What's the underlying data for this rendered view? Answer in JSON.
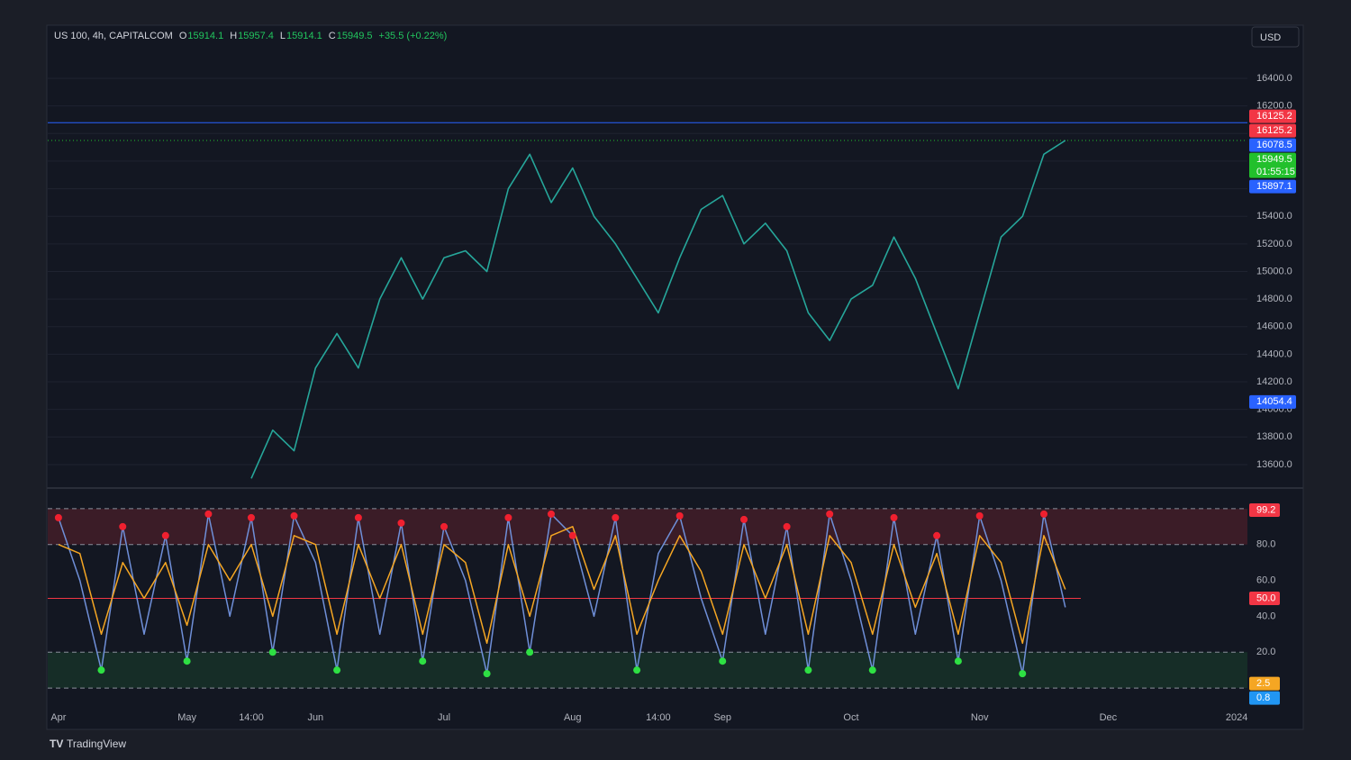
{
  "header": {
    "symbol": "US 100, 4h, CAPITALCOM",
    "ohlc": [
      {
        "key": "O",
        "value": 15914.1
      },
      {
        "key": "H",
        "value": 15957.4
      },
      {
        "key": "L",
        "value": 15914.1
      },
      {
        "key": "C",
        "value": 15949.5
      }
    ],
    "change": "+35.5 (+0.22%)"
  },
  "currency": "USD",
  "brand": "TradingView",
  "chart_data": [
    {
      "type": "line",
      "categories": [
        "Apr",
        null,
        null,
        null,
        null,
        null,
        "May",
        null,
        null,
        "14:00",
        null,
        null,
        "Jun",
        null,
        null,
        null,
        null,
        null,
        "Jul",
        null,
        null,
        null,
        null,
        null,
        "Aug",
        null,
        null,
        null,
        "14:00",
        null,
        null,
        "Sep",
        null,
        null,
        null,
        null,
        null,
        "Oct",
        null,
        null,
        null,
        null,
        null,
        "Nov",
        null,
        null,
        null,
        null,
        null,
        "Dec",
        null,
        null,
        null,
        null,
        null,
        "2024"
      ],
      "series": [
        {
          "color": "#26a69a",
          "values": [
            null,
            null,
            null,
            null,
            null,
            null,
            null,
            null,
            null,
            13500,
            13850,
            13700,
            14300,
            14550,
            14300,
            14800,
            15100,
            14800,
            15100,
            15150,
            15000,
            15600,
            15850,
            15500,
            15750,
            15400,
            15200,
            14950,
            14700,
            15100,
            15450,
            15550,
            15200,
            15350,
            15150,
            14700,
            14500,
            14800,
            14900,
            15250,
            14950,
            14550,
            14150,
            14700,
            15250,
            15400,
            15850,
            15950,
            null,
            null,
            null,
            null,
            null,
            null,
            null,
            null
          ]
        }
      ],
      "ylim": [
        13443,
        16609
      ],
      "yticks": [
        {
          "value": 13600,
          "label": "13600.0"
        },
        {
          "value": 13800,
          "label": "13800.0"
        },
        {
          "value": 14000,
          "label": "14000.0"
        },
        {
          "value": 14200,
          "label": "14200.0"
        },
        {
          "value": 14400,
          "label": "14400.0"
        },
        {
          "value": 14600,
          "label": "14600.0"
        },
        {
          "value": 14800,
          "label": "14800.0"
        },
        {
          "value": 15000,
          "label": "15000.0"
        },
        {
          "value": 15200,
          "label": "15200.0"
        },
        {
          "value": 15400,
          "label": "15400.0"
        },
        {
          "value": 15600,
          "label": "15600.0"
        },
        {
          "value": 15800,
          "label": "15800.0"
        },
        {
          "value": 16000,
          "label": "16000.0"
        },
        {
          "value": 16200,
          "label": "16200.0"
        },
        {
          "value": 16400,
          "label": "16400.0"
        }
      ],
      "grid": true,
      "markers": [
        {
          "value": 16125.2,
          "color": "#f23645"
        },
        {
          "value": 16125.2,
          "color": "#f23645"
        },
        {
          "value": 16078.5,
          "color": "#2962ff",
          "line": "solid"
        },
        {
          "value": 15949.5,
          "color": "#22c02c",
          "line": "dotted",
          "countdown": "01:55:15"
        },
        {
          "value": 15897.1,
          "color": "#2962ff"
        },
        {
          "value": 14054.4,
          "color": "#2962ff"
        }
      ]
    },
    {
      "type": "line",
      "series": [
        {
          "color": "#6f8fd8",
          "values": [
            95,
            60,
            10,
            90,
            30,
            85,
            15,
            97,
            40,
            95,
            20,
            96,
            70,
            10,
            95,
            30,
            92,
            15,
            90,
            60,
            8,
            95,
            20,
            97,
            85,
            40,
            95,
            10,
            75,
            96,
            50,
            15,
            94,
            30,
            90,
            10,
            97,
            60,
            10,
            95,
            30,
            85,
            15,
            96,
            60,
            8,
            97,
            45,
            null,
            null,
            null,
            null,
            null,
            null,
            null,
            null
          ]
        },
        {
          "color": "#f5a623",
          "values": [
            80,
            75,
            30,
            70,
            50,
            70,
            35,
            80,
            60,
            80,
            40,
            85,
            80,
            30,
            80,
            50,
            80,
            30,
            80,
            70,
            25,
            80,
            40,
            85,
            90,
            55,
            85,
            30,
            60,
            85,
            65,
            30,
            80,
            50,
            80,
            30,
            85,
            70,
            30,
            80,
            45,
            75,
            30,
            85,
            70,
            25,
            85,
            55,
            null,
            null,
            null,
            null,
            null,
            null,
            null,
            null
          ]
        }
      ],
      "ylim": [
        -8,
        110
      ],
      "yticks": [
        {
          "value": 20,
          "label": "20.0"
        },
        {
          "value": 40,
          "label": "40.0"
        },
        {
          "value": 60,
          "label": "60.0"
        },
        {
          "value": 80,
          "label": "80.0"
        }
      ],
      "bands": [
        {
          "from": 80,
          "to": 100,
          "color": "rgba(242,54,69,0.18)"
        },
        {
          "from": 0,
          "to": 20,
          "color": "rgba(46,160,67,0.16)"
        }
      ],
      "levels": [
        100,
        80,
        20,
        0
      ],
      "midline": 50,
      "last_labels": [
        {
          "value": 99.2,
          "color": "#f23645"
        },
        {
          "value": 50,
          "label": "50.0",
          "color": "#f23645"
        },
        {
          "value": 2.5,
          "color": "#f5a623"
        },
        {
          "value": 0.8,
          "color": "#2196f3"
        }
      ]
    }
  ]
}
